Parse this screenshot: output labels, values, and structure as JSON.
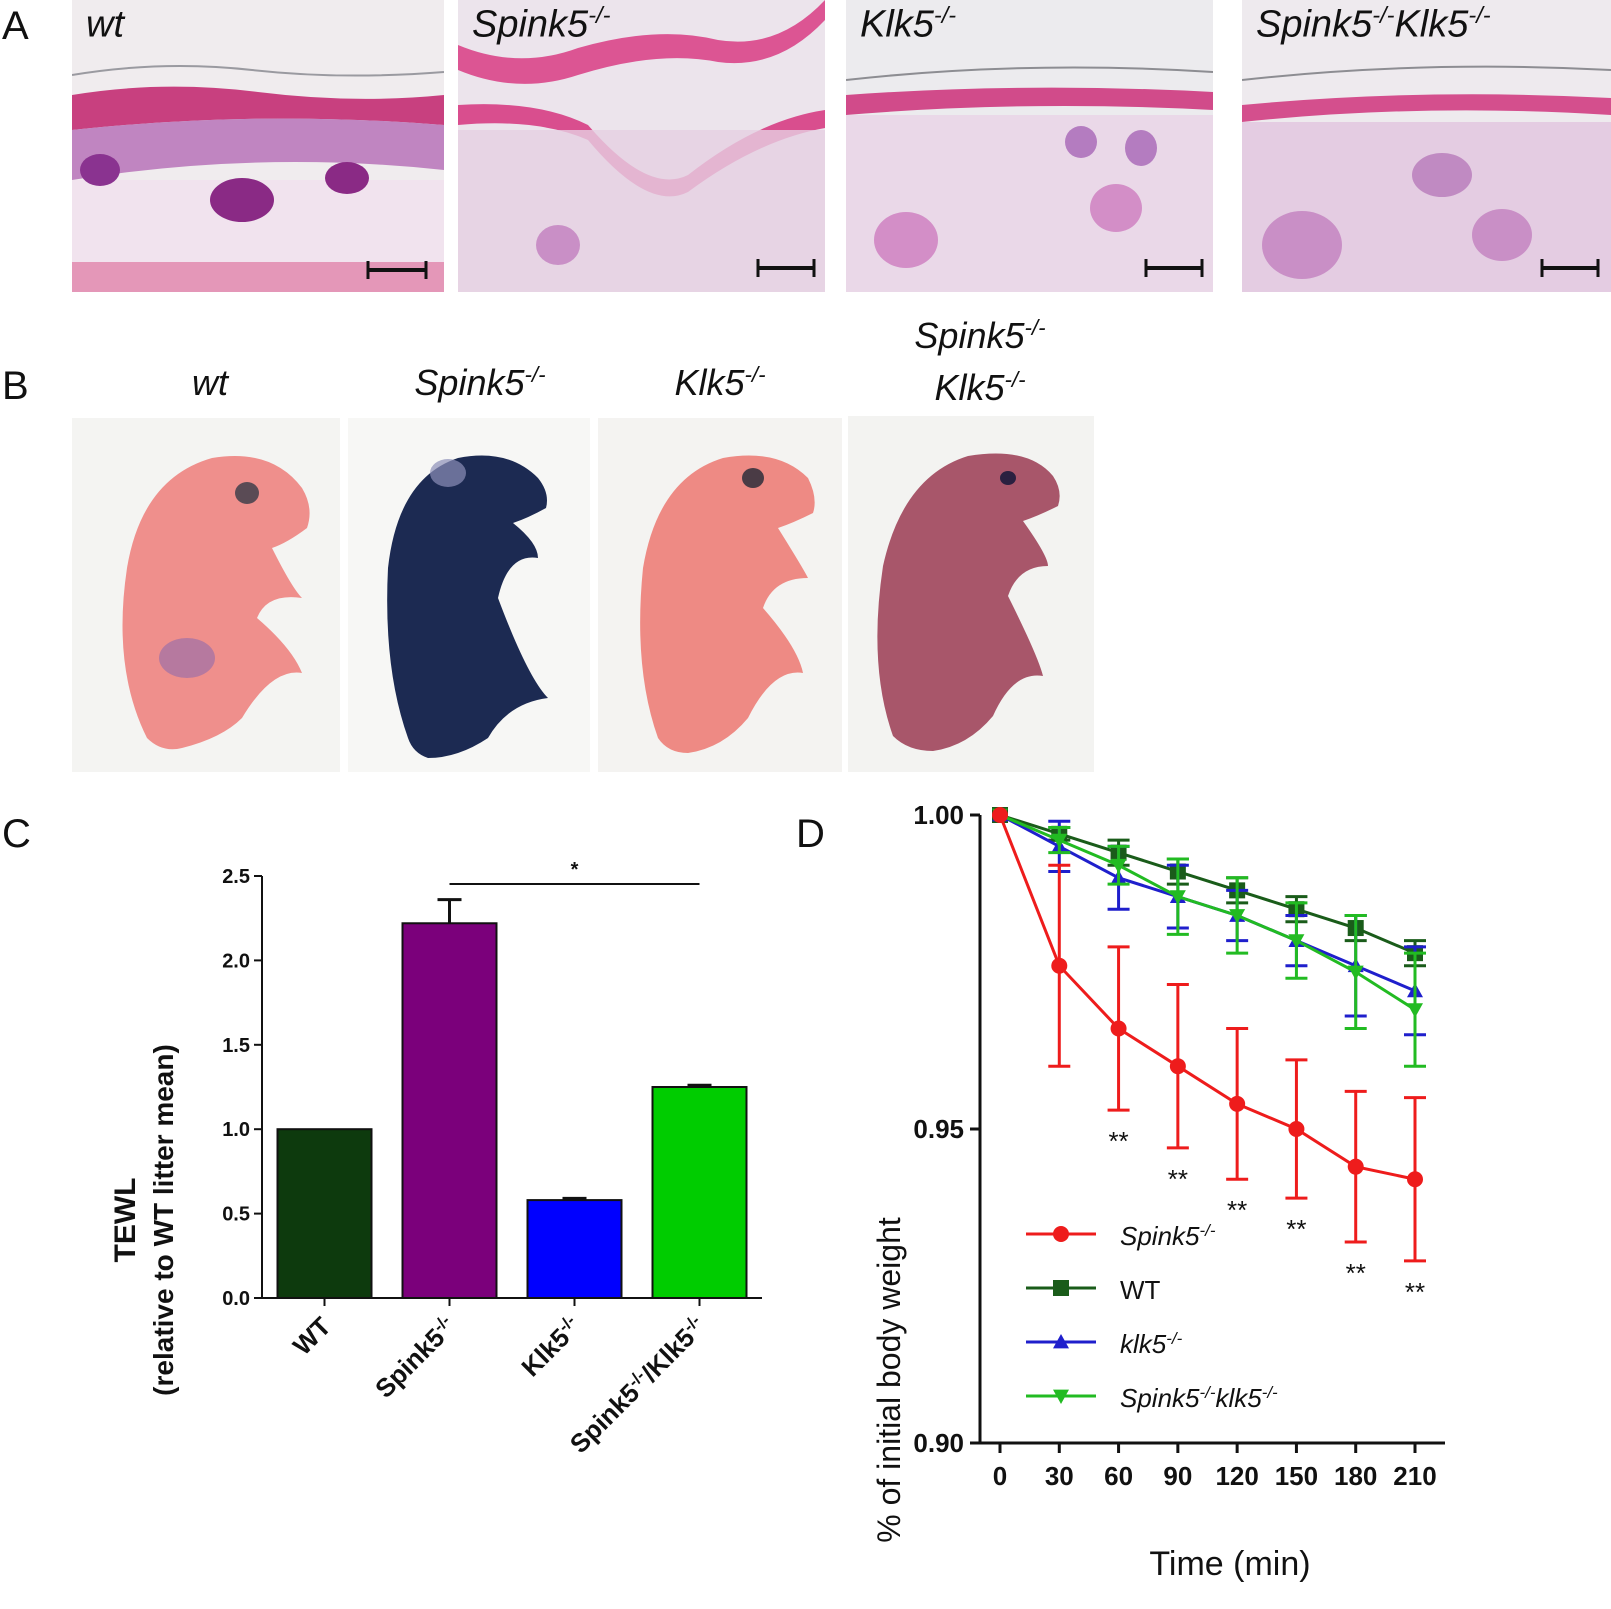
{
  "panels": {
    "a_letter": "A",
    "b_letter": "B",
    "c_letter": "C",
    "d_letter": "D"
  },
  "histology": [
    {
      "label": "wt",
      "sup": ""
    },
    {
      "label": "Spink5",
      "sup": "-/-"
    },
    {
      "label": "Klk5",
      "sup": "-/-"
    },
    {
      "label": "Spink5",
      "sup": "-/-",
      "label2": "Klk5",
      "sup2": "-/-"
    }
  ],
  "photos": [
    {
      "label": "wt",
      "sup": "",
      "color": "#ef8f8c"
    },
    {
      "label": "Spink5",
      "sup": "-/-",
      "color": "#1c2a52"
    },
    {
      "label": "Klk5",
      "sup": "-/-",
      "color": "#ee8a84"
    },
    {
      "label": "Spink5",
      "sup": "-/-",
      "label2": "Klk5",
      "sup2": "-/-",
      "color": "#a8566a"
    }
  ],
  "chart_data": [
    {
      "type": "bar",
      "ylabel_line1": "TEWL",
      "ylabel_line2": "(relative to WT litter mean)",
      "categories": [
        "WT",
        "Spink5-/-",
        "Klk5-/-",
        "Spink5-/-/Klk5-/-"
      ],
      "category_parts": [
        {
          "base": "WT",
          "sup": ""
        },
        {
          "base": "Spink5",
          "sup": "-/-"
        },
        {
          "base": "Klk5",
          "sup": "-/-"
        },
        {
          "base": "Spink5",
          "sup": "-/-",
          "base2": "/Klk5",
          "sup2": "-/-"
        }
      ],
      "values": [
        1.0,
        2.22,
        0.58,
        1.25
      ],
      "errors": [
        0.0,
        0.14,
        0.01,
        0.01
      ],
      "colors": [
        "#0d3a0d",
        "#7b007b",
        "#0000ff",
        "#00cc00"
      ],
      "ylim": [
        0,
        2.5
      ],
      "yticks": [
        "0.0",
        "0.5",
        "1.0",
        "1.5",
        "2.0",
        "2.5"
      ],
      "significance": {
        "from": 1,
        "to": 3,
        "label": "*"
      }
    },
    {
      "type": "line",
      "xlabel": "Time (min)",
      "ylabel": "% of initial body weight",
      "x": [
        0,
        30,
        60,
        90,
        120,
        150,
        180,
        210
      ],
      "xticks": [
        "0",
        "30",
        "60",
        "90",
        "120",
        "150",
        "180",
        "210"
      ],
      "ylim": [
        0.9,
        1.0
      ],
      "yticks": [
        "0.90",
        "0.95",
        "1.00"
      ],
      "series": [
        {
          "name": "Spink5",
          "sup": "-/-",
          "color": "#ee1c1c",
          "marker": "circle",
          "values": [
            1.0,
            0.976,
            0.966,
            0.96,
            0.954,
            0.95,
            0.944,
            0.942
          ],
          "errors": [
            0.0,
            0.016,
            0.013,
            0.013,
            0.012,
            0.011,
            0.012,
            0.013
          ]
        },
        {
          "name": "WT",
          "sup": "",
          "color": "#1a5c1a",
          "marker": "square",
          "values": [
            1.0,
            0.997,
            0.994,
            0.991,
            0.988,
            0.985,
            0.982,
            0.978
          ],
          "errors": [
            0.0,
            0.001,
            0.002,
            0.002,
            0.002,
            0.002,
            0.002,
            0.002
          ]
        },
        {
          "name": "klk5",
          "sup": "-/-",
          "color": "#1f1fcc",
          "marker": "triangle-up",
          "values": [
            1.0,
            0.995,
            0.99,
            0.987,
            0.984,
            0.98,
            0.976,
            0.972
          ],
          "errors": [
            0.0,
            0.004,
            0.005,
            0.005,
            0.004,
            0.004,
            0.008,
            0.007
          ]
        },
        {
          "name": "Spink5",
          "sup": "-/-",
          "name2": "klk5",
          "sup2": "-/-",
          "color": "#22bb22",
          "marker": "triangle-down",
          "values": [
            1.0,
            0.996,
            0.992,
            0.987,
            0.984,
            0.98,
            0.975,
            0.969
          ],
          "errors": [
            0.0,
            0.002,
            0.003,
            0.006,
            0.006,
            0.006,
            0.009,
            0.009
          ]
        }
      ],
      "annotations": [
        {
          "x": 60,
          "label": "**"
        },
        {
          "x": 90,
          "label": "**"
        },
        {
          "x": 120,
          "label": "**"
        },
        {
          "x": 150,
          "label": "**"
        },
        {
          "x": 180,
          "label": "**"
        },
        {
          "x": 210,
          "label": "**"
        }
      ]
    }
  ]
}
